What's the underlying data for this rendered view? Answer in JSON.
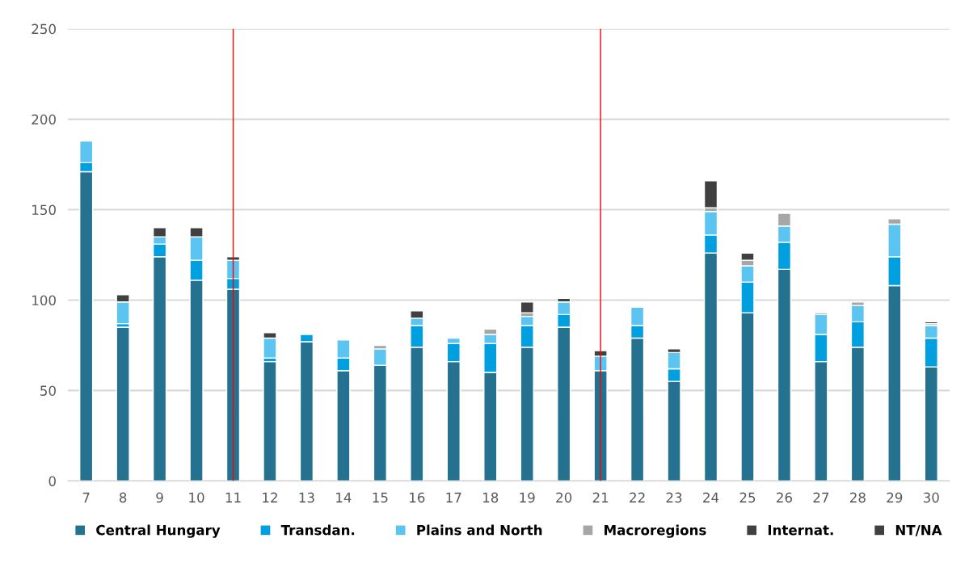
{
  "chart_data": {
    "type": "bar",
    "stacked": true,
    "x": [
      7,
      8,
      9,
      10,
      11,
      12,
      13,
      14,
      15,
      16,
      17,
      18,
      19,
      20,
      21,
      22,
      23,
      24,
      25,
      26,
      27,
      28,
      29,
      30
    ],
    "xlim": [
      6.5,
      30.5
    ],
    "xticks": [
      7,
      8,
      9,
      10,
      11,
      12,
      13,
      14,
      15,
      16,
      17,
      18,
      19,
      20,
      21,
      22,
      23,
      24,
      25,
      26,
      27,
      28,
      29,
      30
    ],
    "ylim": [
      0,
      250
    ],
    "yticks": [
      0,
      50,
      100,
      150,
      200,
      250
    ],
    "grid": "y",
    "legend": "bottom",
    "series": [
      {
        "name": "Central Hungary",
        "color": "#24728f",
        "values": [
          171,
          85,
          124,
          111,
          106,
          66,
          77,
          61,
          64,
          74,
          66,
          60,
          74,
          85,
          61,
          79,
          55,
          126,
          93,
          117,
          66,
          74,
          108,
          63
        ]
      },
      {
        "name": "Transdan.",
        "color": "#009fe0",
        "values": [
          5,
          2,
          7,
          11,
          6,
          2,
          4,
          7,
          null,
          12,
          10,
          16,
          12,
          7,
          null,
          7,
          7,
          10,
          17,
          15,
          15,
          14,
          16,
          16
        ]
      },
      {
        "name": "Plains and North",
        "color": "#5bc4f1",
        "values": [
          12,
          12,
          4,
          13,
          10,
          11,
          null,
          10,
          9,
          4,
          3,
          5,
          5,
          7,
          8,
          10,
          9,
          13,
          9,
          9,
          11,
          9,
          18,
          7
        ]
      },
      {
        "name": "Macroregions",
        "color": "#a6a6a6",
        "values": [
          null,
          null,
          null,
          null,
          null,
          null,
          null,
          null,
          2,
          null,
          null,
          3,
          2,
          null,
          null,
          null,
          null,
          2,
          3,
          7,
          1,
          2,
          3,
          1
        ]
      },
      {
        "name": "Internat.",
        "color": "#404040",
        "values": [
          null,
          4,
          5,
          5,
          2,
          3,
          null,
          null,
          null,
          4,
          null,
          null,
          null,
          2,
          3,
          null,
          2,
          null,
          4,
          null,
          null,
          null,
          null,
          1
        ]
      },
      {
        "name": "NT/NA",
        "color": "#404040",
        "values": [
          null,
          null,
          null,
          null,
          null,
          null,
          null,
          null,
          null,
          null,
          null,
          null,
          6,
          null,
          null,
          null,
          null,
          15,
          null,
          null,
          null,
          null,
          null,
          null
        ]
      }
    ],
    "ref_lines": [
      {
        "axis": "x",
        "value": 11,
        "color": "#ff0000"
      },
      {
        "axis": "x",
        "value": 21,
        "color": "#ff0000"
      }
    ]
  }
}
